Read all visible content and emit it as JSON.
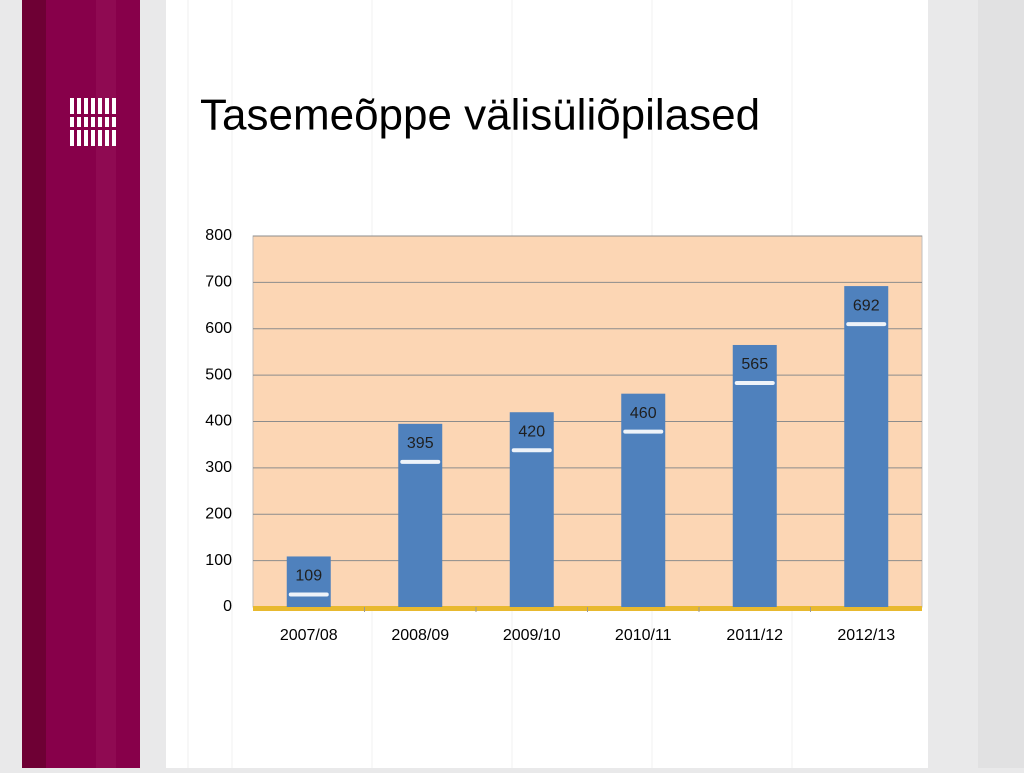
{
  "chart_data": {
    "type": "bar",
    "title": "Tasemeõppe välisüliõpilased",
    "categories": [
      "2007/08",
      "2008/09",
      "2009/10",
      "2010/11",
      "2011/12",
      "2012/13"
    ],
    "values": [
      109,
      395,
      420,
      460,
      565,
      692
    ],
    "color": "#4f81bd",
    "ylim": [
      0,
      800
    ],
    "yticks": [
      0,
      100,
      200,
      300,
      400,
      500,
      600,
      700,
      800
    ],
    "grid": true
  }
}
